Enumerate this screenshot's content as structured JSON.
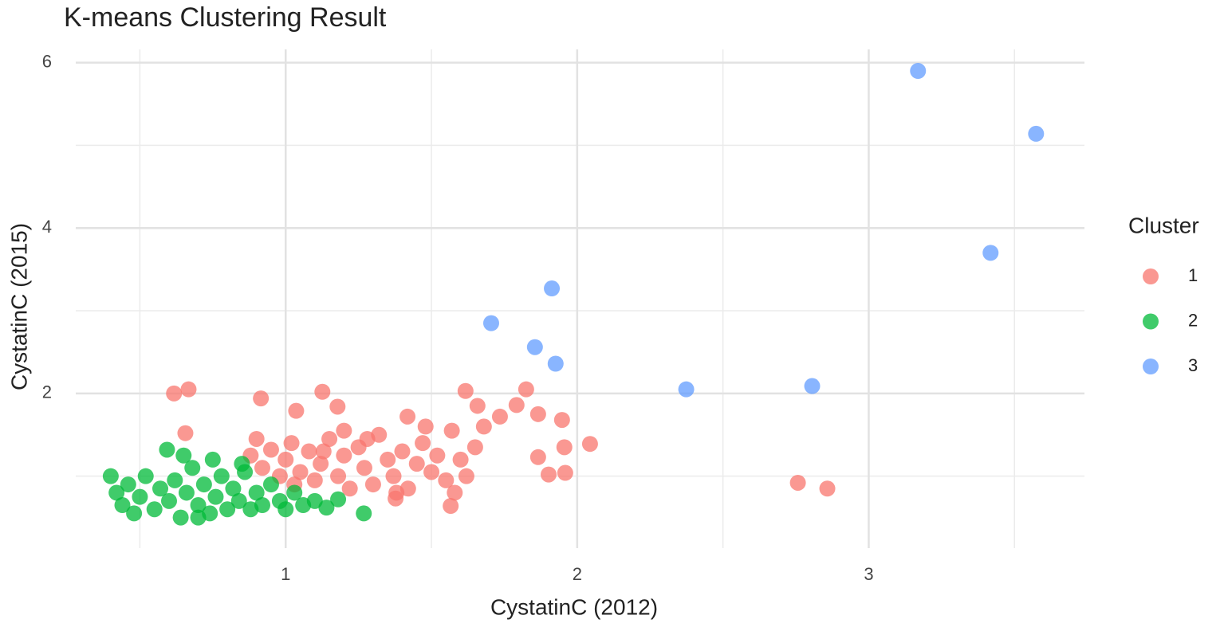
{
  "chart_data": {
    "type": "scatter",
    "title": "K-means Clustering Result",
    "x_label": "CystatinC (2012)",
    "y_label": "CystatinC (2015)",
    "legend_title": "Cluster",
    "legend": "right",
    "grid": true,
    "xlim": [
      0.28,
      3.74
    ],
    "ylim": [
      0.13,
      6.16
    ],
    "xticks": [
      1,
      2,
      3
    ],
    "yticks": [
      2,
      4,
      6
    ],
    "x_minor_ticks": [
      0.5,
      1.5,
      2.5,
      3.5
    ],
    "y_minor_ticks": [
      1,
      3,
      5
    ],
    "series": [
      {
        "name": "1",
        "color": "#F8766D",
        "x": [
          2.757,
          2.858,
          0.617,
          0.667,
          0.656,
          0.915,
          1.126,
          1.036,
          1.178,
          1.617,
          1.825,
          1.658,
          1.735,
          1.866,
          1.948,
          2.044,
          1.956,
          1.866,
          1.959,
          1.902,
          1.566,
          1.418,
          1.792,
          1.377,
          0.88,
          0.92,
          0.95,
          0.98,
          1.0,
          1.02,
          1.05,
          1.08,
          1.1,
          1.12,
          1.15,
          1.18,
          1.2,
          1.22,
          1.25,
          1.27,
          1.3,
          1.32,
          1.35,
          1.37,
          1.4,
          1.42,
          1.45,
          1.47,
          1.5,
          1.52,
          1.55,
          1.57,
          1.6,
          1.62,
          1.65,
          1.58,
          1.28,
          1.13,
          1.03,
          1.38,
          1.48,
          1.68,
          0.9,
          1.2
        ],
        "y": [
          0.92,
          0.85,
          2.0,
          2.05,
          1.52,
          1.94,
          2.02,
          1.79,
          1.84,
          2.03,
          2.05,
          1.85,
          1.72,
          1.75,
          1.68,
          1.39,
          1.35,
          1.23,
          1.04,
          1.02,
          0.64,
          1.72,
          1.86,
          0.73,
          1.25,
          1.1,
          1.32,
          1.0,
          1.2,
          1.4,
          1.05,
          1.3,
          0.95,
          1.15,
          1.45,
          1.0,
          1.25,
          0.85,
          1.35,
          1.1,
          0.9,
          1.5,
          1.2,
          1.0,
          1.3,
          0.85,
          1.15,
          1.4,
          1.05,
          1.25,
          0.95,
          1.55,
          1.2,
          1.0,
          1.35,
          0.8,
          1.45,
          1.3,
          0.9,
          0.8,
          1.6,
          1.6,
          1.45,
          1.55
        ]
      },
      {
        "name": "2",
        "color": "#00BA38",
        "x": [
          0.4,
          0.42,
          0.44,
          0.46,
          0.48,
          0.5,
          0.52,
          0.55,
          0.57,
          0.6,
          0.62,
          0.64,
          0.66,
          0.68,
          0.7,
          0.72,
          0.74,
          0.76,
          0.78,
          0.8,
          0.82,
          0.84,
          0.86,
          0.88,
          0.9,
          0.92,
          0.95,
          0.98,
          1.0,
          1.03,
          1.06,
          1.1,
          1.14,
          1.18,
          1.268,
          0.593,
          0.65,
          0.75,
          0.85,
          0.7
        ],
        "y": [
          1.0,
          0.8,
          0.65,
          0.9,
          0.55,
          0.75,
          1.0,
          0.6,
          0.85,
          0.7,
          0.95,
          0.5,
          0.8,
          1.1,
          0.65,
          0.9,
          0.55,
          0.75,
          1.0,
          0.6,
          0.85,
          0.7,
          1.05,
          0.6,
          0.8,
          0.65,
          0.9,
          0.7,
          0.6,
          0.8,
          0.65,
          0.7,
          0.62,
          0.72,
          0.55,
          1.32,
          1.25,
          1.2,
          1.15,
          0.5
        ]
      },
      {
        "name": "3",
        "color": "#619CFF",
        "x": [
          3.169,
          3.574,
          3.418,
          1.913,
          1.705,
          1.855,
          1.926,
          2.374,
          2.806
        ],
        "y": [
          5.9,
          5.14,
          3.7,
          3.27,
          2.85,
          2.56,
          2.36,
          2.05,
          2.09
        ]
      }
    ]
  }
}
